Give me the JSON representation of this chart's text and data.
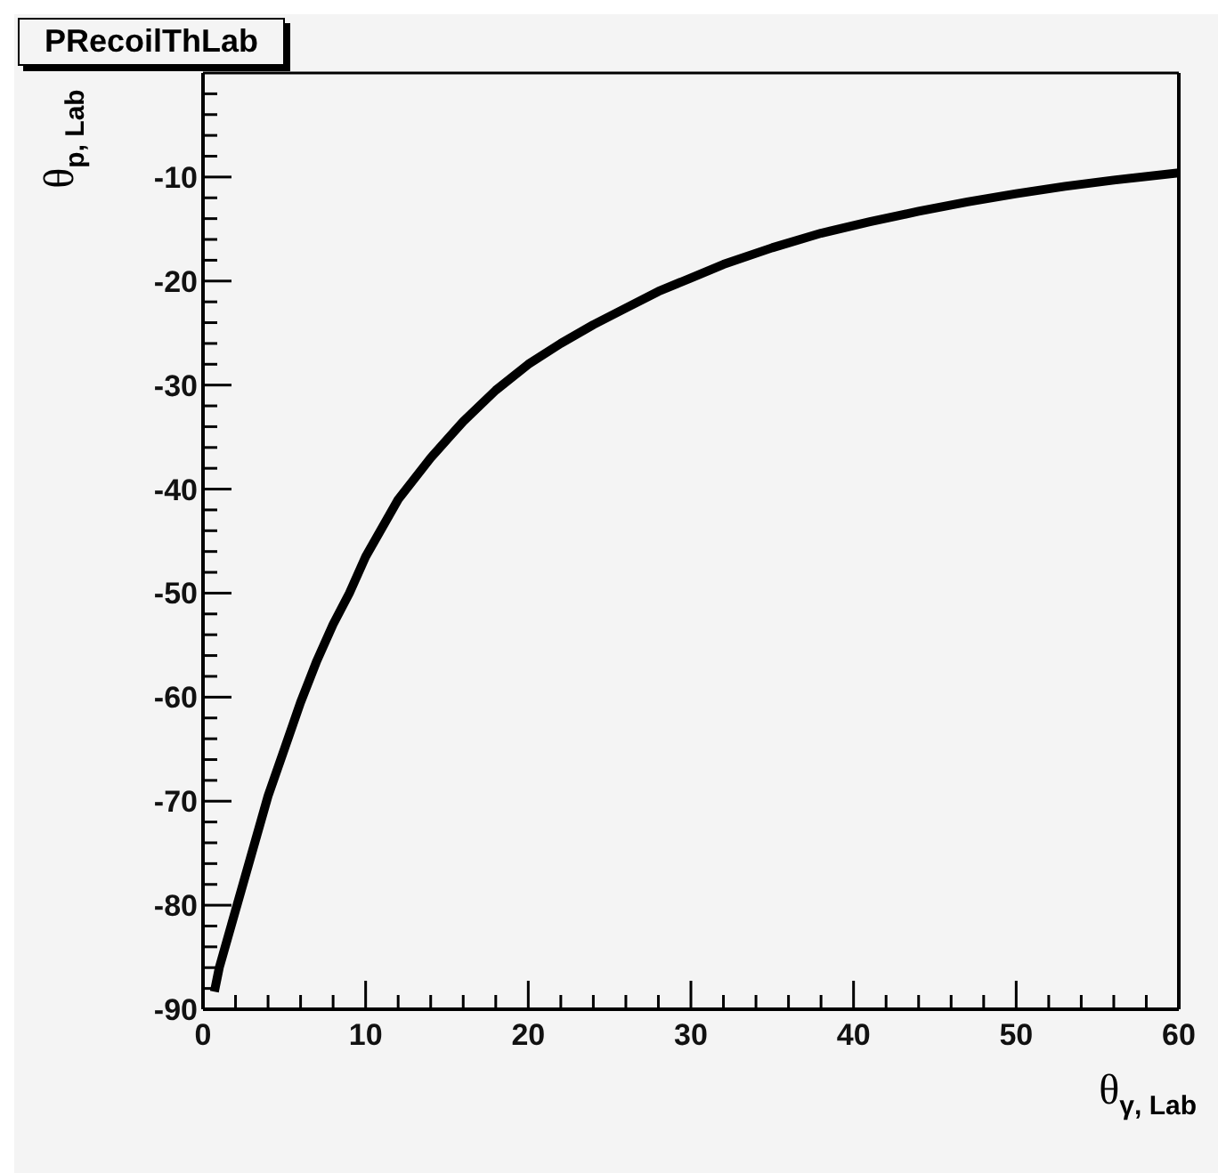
{
  "chart_data": {
    "type": "line",
    "title": "PRecoilThLab",
    "xlabel": "θ$_{γ, Lab}$",
    "ylabel": "θ$_{p, Lab}$",
    "x": [
      0.7,
      1,
      2,
      3,
      4,
      5,
      6,
      7,
      8,
      9,
      10,
      12,
      14,
      16,
      18,
      20,
      22,
      24,
      26,
      28,
      30,
      32,
      35,
      38,
      41,
      44,
      47,
      50,
      53,
      56,
      60
    ],
    "series": [
      {
        "color": "#000000",
        "values": [
          -88.3,
          -86,
          -80.5,
          -75,
          -69.5,
          -65,
          -60.5,
          -56.5,
          -53,
          -50,
          -46.5,
          -41,
          -37,
          -33.5,
          -30.5,
          -28,
          -26,
          -24.2,
          -22.6,
          -21,
          -19.7,
          -18.4,
          -16.8,
          -15.4,
          -14.3,
          -13.3,
          -12.4,
          -11.6,
          -10.9,
          -10.3,
          -9.6
        ]
      }
    ],
    "xlim": [
      0,
      60
    ],
    "ylim": [
      -90,
      0
    ],
    "xticks": [
      0,
      {
        "value": 2,
        "label": null
      },
      {
        "value": 4,
        "label": null
      },
      {
        "value": 6,
        "label": null
      },
      {
        "value": 8,
        "label": null
      },
      10,
      {
        "value": 12,
        "label": null
      },
      {
        "value": 14,
        "label": null
      },
      {
        "value": 16,
        "label": null
      },
      {
        "value": 18,
        "label": null
      },
      20,
      {
        "value": 22,
        "label": null
      },
      {
        "value": 24,
        "label": null
      },
      {
        "value": 26,
        "label": null
      },
      {
        "value": 28,
        "label": null
      },
      30,
      {
        "value": 32,
        "label": null
      },
      {
        "value": 34,
        "label": null
      },
      {
        "value": 36,
        "label": null
      },
      {
        "value": 38,
        "label": null
      },
      40,
      {
        "value": 42,
        "label": null
      },
      {
        "value": 44,
        "label": null
      },
      {
        "value": 46,
        "label": null
      },
      {
        "value": 48,
        "label": null
      },
      50,
      {
        "value": 52,
        "label": null
      },
      {
        "value": 54,
        "label": null
      },
      {
        "value": 56,
        "label": null
      },
      {
        "value": 58,
        "label": null
      },
      60
    ],
    "yticks": [
      -90,
      {
        "value": -88,
        "label": null
      },
      {
        "value": -86,
        "label": null
      },
      {
        "value": -84,
        "label": null
      },
      {
        "value": -82,
        "label": null
      },
      -80,
      {
        "value": -78,
        "label": null
      },
      {
        "value": -76,
        "label": null
      },
      {
        "value": -74,
        "label": null
      },
      {
        "value": -72,
        "label": null
      },
      -70,
      {
        "value": -68,
        "label": null
      },
      {
        "value": -66,
        "label": null
      },
      {
        "value": -64,
        "label": null
      },
      {
        "value": -62,
        "label": null
      },
      -60,
      {
        "value": -58,
        "label": null
      },
      {
        "value": -56,
        "label": null
      },
      {
        "value": -54,
        "label": null
      },
      {
        "value": -52,
        "label": null
      },
      -50,
      {
        "value": -48,
        "label": null
      },
      {
        "value": -46,
        "label": null
      },
      {
        "value": -44,
        "label": null
      },
      {
        "value": -42,
        "label": null
      },
      -40,
      {
        "value": -38,
        "label": null
      },
      {
        "value": -36,
        "label": null
      },
      {
        "value": -34,
        "label": null
      },
      {
        "value": -32,
        "label": null
      },
      -30,
      {
        "value": -28,
        "label": null
      },
      {
        "value": -26,
        "label": null
      },
      {
        "value": -24,
        "label": null
      },
      {
        "value": -22,
        "label": null
      },
      -20,
      {
        "value": -18,
        "label": null
      },
      {
        "value": -16,
        "label": null
      },
      {
        "value": -14,
        "label": null
      },
      {
        "value": -12,
        "label": null
      },
      -10,
      {
        "value": -8,
        "label": null
      },
      {
        "value": -6,
        "label": null
      },
      {
        "value": -4,
        "label": null
      },
      {
        "value": -2,
        "label": null
      }
    ]
  }
}
